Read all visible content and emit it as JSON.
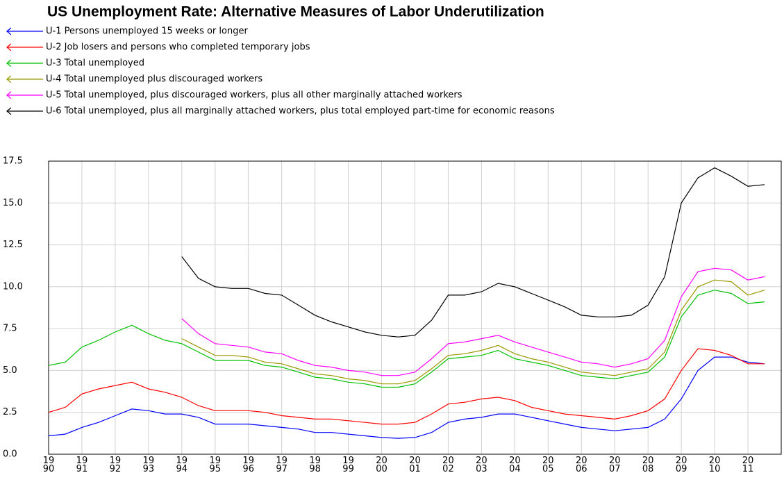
{
  "chart_data": {
    "type": "line",
    "title": "US Unemployment Rate: Alternative Measures of Labor Underutilization",
    "x": [
      1990,
      1990.5,
      1991,
      1991.5,
      1992,
      1992.5,
      1993,
      1993.5,
      1994,
      1994.5,
      1995,
      1995.5,
      1996,
      1996.5,
      1997,
      1997.5,
      1998,
      1998.5,
      1999,
      1999.5,
      2000,
      2000.5,
      2001,
      2001.5,
      2002,
      2002.5,
      2003,
      2003.5,
      2004,
      2004.5,
      2005,
      2005.5,
      2006,
      2006.5,
      2007,
      2007.5,
      2008,
      2008.5,
      2009,
      2009.5,
      2010,
      2010.5,
      2011,
      2011.5
    ],
    "series": [
      {
        "name": "U-1 Persons unemployed 15 weeks or longer",
        "color": "#0000ff",
        "values": [
          1.1,
          1.2,
          1.6,
          1.9,
          2.3,
          2.7,
          2.6,
          2.4,
          2.4,
          2.2,
          1.8,
          1.8,
          1.8,
          1.7,
          1.6,
          1.5,
          1.3,
          1.3,
          1.2,
          1.1,
          1.0,
          0.95,
          1.0,
          1.3,
          1.9,
          2.1,
          2.2,
          2.4,
          2.4,
          2.2,
          2.0,
          1.8,
          1.6,
          1.5,
          1.4,
          1.5,
          1.6,
          2.1,
          3.3,
          5.0,
          5.8,
          5.8,
          5.5,
          5.4
        ]
      },
      {
        "name": "U-2 Job losers and persons who completed temporary jobs",
        "color": "#ff0000",
        "values": [
          2.5,
          2.8,
          3.6,
          3.9,
          4.1,
          4.3,
          3.9,
          3.7,
          3.4,
          2.9,
          2.6,
          2.6,
          2.6,
          2.5,
          2.3,
          2.2,
          2.1,
          2.1,
          2.0,
          1.9,
          1.8,
          1.8,
          1.9,
          2.4,
          3.0,
          3.1,
          3.3,
          3.4,
          3.2,
          2.8,
          2.6,
          2.4,
          2.3,
          2.2,
          2.1,
          2.3,
          2.6,
          3.3,
          5.0,
          6.3,
          6.2,
          5.9,
          5.4,
          5.4
        ]
      },
      {
        "name": "U-3 Total unemployed",
        "color": "#00c000",
        "values": [
          5.3,
          5.5,
          6.4,
          6.8,
          7.3,
          7.7,
          7.2,
          6.8,
          6.6,
          6.1,
          5.6,
          5.6,
          5.6,
          5.3,
          5.2,
          4.9,
          4.6,
          4.5,
          4.3,
          4.2,
          4.0,
          4.0,
          4.2,
          4.9,
          5.7,
          5.8,
          5.9,
          6.2,
          5.7,
          5.5,
          5.3,
          5.0,
          4.7,
          4.6,
          4.5,
          4.7,
          4.9,
          5.8,
          8.2,
          9.5,
          9.8,
          9.6,
          9.0,
          9.1
        ]
      },
      {
        "name": "U-4 Total unemployed plus discouraged workers",
        "color": "#999900",
        "values": [
          null,
          null,
          null,
          null,
          null,
          null,
          null,
          null,
          6.9,
          6.4,
          5.9,
          5.9,
          5.8,
          5.5,
          5.4,
          5.1,
          4.8,
          4.7,
          4.5,
          4.4,
          4.2,
          4.2,
          4.4,
          5.1,
          5.9,
          6.0,
          6.2,
          6.5,
          6.0,
          5.7,
          5.5,
          5.2,
          4.9,
          4.8,
          4.7,
          4.9,
          5.1,
          6.1,
          8.6,
          10.0,
          10.4,
          10.3,
          9.5,
          9.8
        ]
      },
      {
        "name": "U-5 Total unemployed, plus discouraged workers, plus all other marginally attached workers",
        "color": "#ff00ff",
        "values": [
          null,
          null,
          null,
          null,
          null,
          null,
          null,
          null,
          8.1,
          7.2,
          6.6,
          6.5,
          6.4,
          6.1,
          6.0,
          5.6,
          5.3,
          5.2,
          5.0,
          4.9,
          4.7,
          4.7,
          4.9,
          5.7,
          6.6,
          6.7,
          6.9,
          7.1,
          6.7,
          6.4,
          6.1,
          5.8,
          5.5,
          5.4,
          5.2,
          5.4,
          5.7,
          6.8,
          9.4,
          10.9,
          11.1,
          11.0,
          10.4,
          10.6
        ]
      },
      {
        "name": "U-6 Total unemployed, plus all marginally attached workers, plus total employed part-time for economic reasons",
        "color": "#000000",
        "values": [
          null,
          null,
          null,
          null,
          null,
          null,
          null,
          null,
          11.8,
          10.5,
          10.0,
          9.9,
          9.9,
          9.6,
          9.5,
          8.9,
          8.3,
          7.9,
          7.6,
          7.3,
          7.1,
          7.0,
          7.1,
          8.0,
          9.5,
          9.5,
          9.7,
          10.2,
          10.0,
          9.6,
          9.2,
          8.8,
          8.3,
          8.2,
          8.2,
          8.3,
          8.9,
          10.6,
          15.0,
          16.5,
          17.1,
          16.6,
          16.0,
          16.1
        ]
      }
    ],
    "xlim": [
      1990,
      2012
    ],
    "xticks": [
      {
        "value": 1990,
        "label": "1990"
      },
      {
        "value": 1991,
        "label": "1991"
      },
      {
        "value": 1992,
        "label": "1992"
      },
      {
        "value": 1993,
        "label": "1993"
      },
      {
        "value": 1994,
        "label": "1994"
      },
      {
        "value": 1995,
        "label": "1995"
      },
      {
        "value": 1996,
        "label": "1996"
      },
      {
        "value": 1997,
        "label": "1997"
      },
      {
        "value": 1998,
        "label": "1998"
      },
      {
        "value": 1999,
        "label": "1999"
      },
      {
        "value": 2000,
        "label": "2000"
      },
      {
        "value": 2001,
        "label": "2001"
      },
      {
        "value": 2002,
        "label": "2002"
      },
      {
        "value": 2003,
        "label": "2003"
      },
      {
        "value": 2004,
        "label": "2004"
      },
      {
        "value": 2005,
        "label": "2005"
      },
      {
        "value": 2006,
        "label": "2006"
      },
      {
        "value": 2007,
        "label": "2007"
      },
      {
        "value": 2008,
        "label": "2008"
      },
      {
        "value": 2009,
        "label": "2009"
      },
      {
        "value": 2010,
        "label": "2010"
      },
      {
        "value": 2011,
        "label": "2011"
      }
    ],
    "ylim": [
      0,
      17.5
    ],
    "yticks": [
      {
        "value": 0,
        "label": "0.0"
      },
      2.5,
      {
        "value": 5,
        "label": "5.0"
      },
      7.5,
      {
        "value": 10,
        "label": "10.0"
      },
      12.5,
      {
        "value": 15,
        "label": "15.0"
      },
      17.5
    ],
    "grid": true
  }
}
